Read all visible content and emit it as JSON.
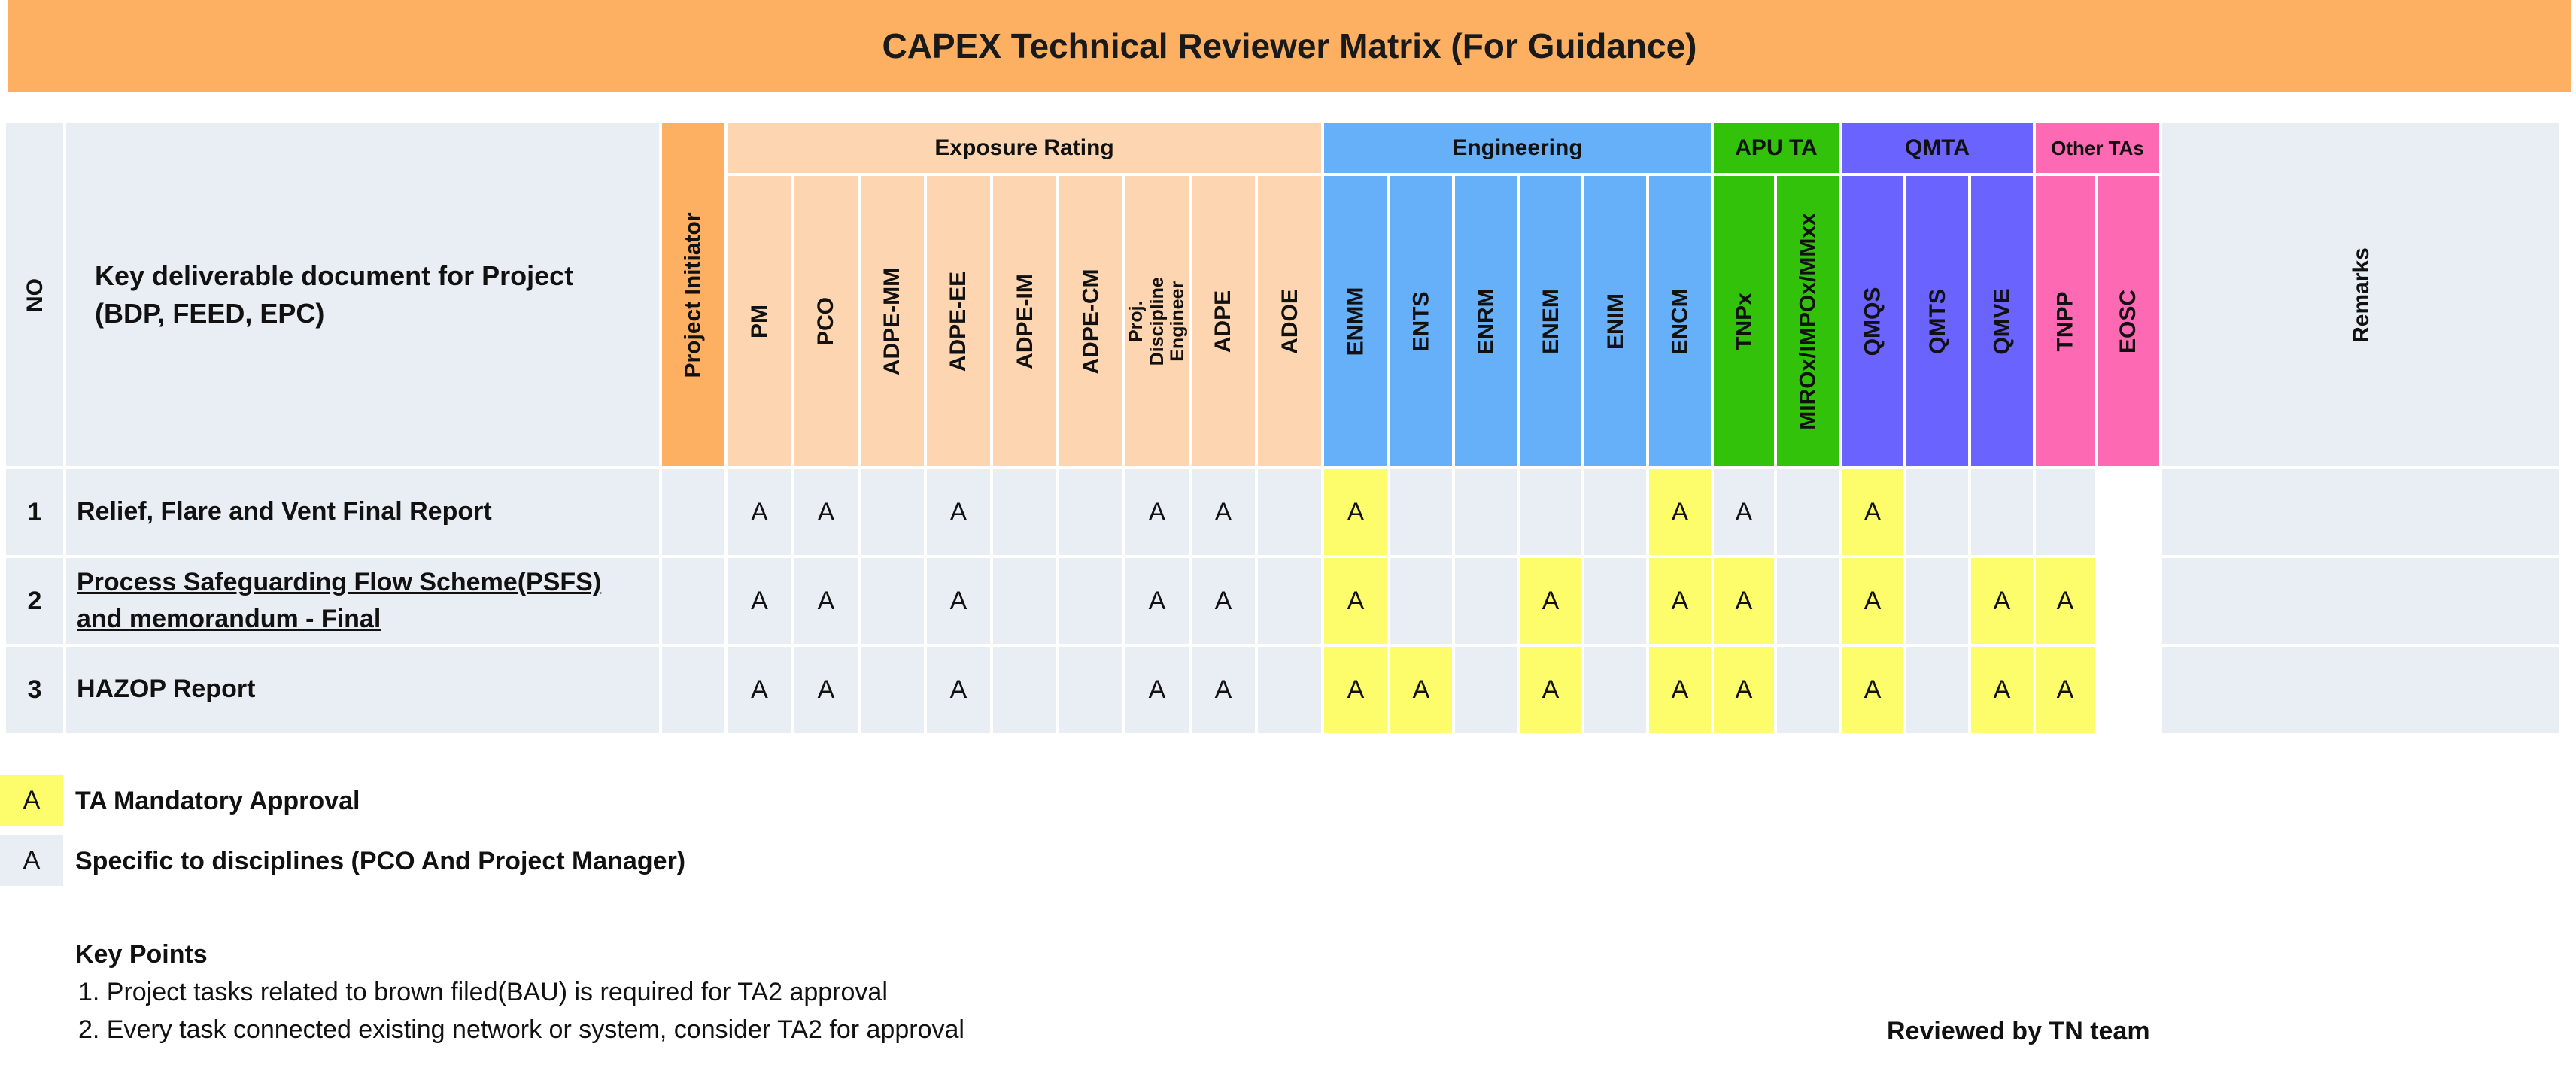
{
  "title": "CAPEX Technical Reviewer Matrix (For Guidance)",
  "header": {
    "no": "NO",
    "deliverable": "Key deliverable document for Project (BDP, FEED, EPC)",
    "initiator": "Project Initiator",
    "remarks": "Remarks"
  },
  "groups": [
    {
      "label": "Exposure Rating",
      "color": "#fdd5b0",
      "columns": [
        "PM",
        "PCO",
        "ADPE-MM",
        "ADPE-EE",
        "ADPE-IM",
        "ADPE-CM",
        "Proj. Discipline Engineer",
        "ADPE",
        "ADOE"
      ]
    },
    {
      "label": "Engineering",
      "color": "#66b0fa",
      "columns": [
        "ENMM",
        "ENTS",
        "ENRM",
        "ENEM",
        "ENIM",
        "ENCM"
      ]
    },
    {
      "label": "APU TA",
      "color": "#32c20a",
      "columns": [
        "TNPx",
        "MIROx/IMPOx/MMxx"
      ]
    },
    {
      "label": "QMTA",
      "color": "#6b63fd",
      "columns": [
        "QMQS",
        "QMTS",
        "QMVE"
      ]
    },
    {
      "label": "Other TAs",
      "color": "#fd69b3",
      "columns": [
        "TNPP",
        "EOSC"
      ]
    }
  ],
  "rows": [
    {
      "no": "1",
      "deliverable": "Relief, Flare and Vent Final Report",
      "marks": [
        "",
        "A",
        "A",
        "",
        "A",
        "",
        "",
        "A",
        "A",
        "",
        "Y",
        "",
        "",
        "",
        "",
        "Y",
        "A",
        "",
        "Y",
        "",
        "-",
        "-"
      ]
    },
    {
      "no": "2",
      "deliverable": "Process Safeguarding Flow Scheme(PSFS) and memorandum - Final",
      "marks": [
        "",
        "A",
        "A",
        "",
        "A",
        "",
        "",
        "A",
        "A",
        "",
        "Y",
        "",
        "",
        "Y",
        "",
        "Y",
        "Y",
        "",
        "Y",
        "",
        "Y",
        "Y"
      ]
    },
    {
      "no": "3",
      "deliverable": "HAZOP Report",
      "marks": [
        "",
        "A",
        "A",
        "",
        "A",
        "",
        "",
        "A",
        "A",
        "",
        "Y",
        "Y",
        "",
        "Y",
        "",
        "Y",
        "Y",
        "",
        "Y",
        "",
        "Y",
        "Y"
      ]
    }
  ],
  "mark_letter": "A",
  "colors": {
    "light": "#e8eef4",
    "yellow": "#fdfd6b",
    "initiator": "#fdb062",
    "title": "#fdb062"
  },
  "legend": [
    {
      "letter": "A",
      "text": "TA Mandatory Approval",
      "color": "#fdfd6b"
    },
    {
      "letter": "A",
      "text": "Specific to disciplines (PCO And Project Manager)",
      "color": "#e8eef4"
    }
  ],
  "key_points": {
    "title": "Key Points",
    "items": [
      "1. Project tasks related to brown filed(BAU) is required for TA2 approval",
      "2. Every task connected existing network or system, consider TA2 for approval"
    ]
  },
  "reviewed_by": "Reviewed by TN team"
}
